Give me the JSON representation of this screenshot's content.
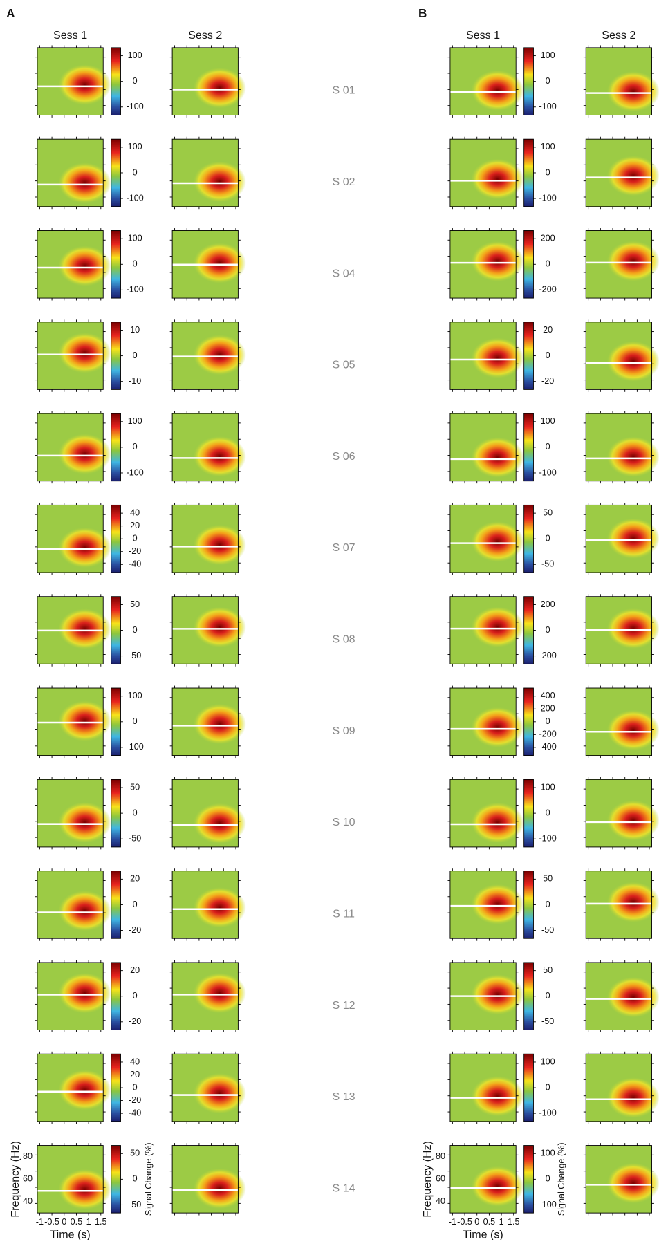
{
  "panels": [
    {
      "label": "A",
      "sessions": [
        "Sess 1",
        "Sess 2"
      ],
      "colorbar_ticks": [
        [
          100,
          0,
          -100
        ],
        [
          100,
          0,
          -100
        ],
        [
          100,
          0,
          -100
        ],
        [
          10,
          0,
          -10
        ],
        [
          100,
          0,
          -100
        ],
        [
          40,
          20,
          0,
          -20,
          -40
        ],
        [
          50,
          0,
          -50
        ],
        [
          100,
          0,
          -100
        ],
        [
          50,
          0,
          -50
        ],
        [
          20,
          0,
          -20
        ],
        [
          20,
          0,
          -20
        ],
        [
          40,
          20,
          0,
          -20,
          -40
        ],
        [
          50,
          0,
          -50
        ]
      ],
      "axes": {
        "ylabel": "Frequency (Hz)",
        "yticks": [
          80,
          60,
          40
        ],
        "xlabel": "Time (s)",
        "xticks": [
          -1,
          -0.5,
          0,
          0.5,
          1,
          1.5
        ],
        "colorbar_label": "Signal Change (%)"
      }
    },
    {
      "label": "B",
      "sessions": [
        "Sess 1",
        "Sess 2"
      ],
      "colorbar_ticks": [
        [
          100,
          0,
          -100
        ],
        [
          100,
          0,
          -100
        ],
        [
          200,
          0,
          -200
        ],
        [
          20,
          0,
          -20
        ],
        [
          100,
          0,
          -100
        ],
        [
          50,
          0,
          -50
        ],
        [
          200,
          0,
          -200
        ],
        [
          400,
          200,
          0,
          -200,
          -400
        ],
        [
          100,
          0,
          -100
        ],
        [
          50,
          0,
          -50
        ],
        [
          50,
          0,
          -50
        ],
        [
          100,
          0,
          -100
        ],
        [
          100,
          0,
          -100
        ]
      ],
      "axes": {
        "ylabel": "Frequency (Hz)",
        "yticks": [
          80,
          60,
          40
        ],
        "xlabel": "Time (s)",
        "xticks": [
          -1,
          -0.5,
          0,
          0.5,
          1,
          1.5
        ],
        "colorbar_label": "Signal Change (%)"
      }
    }
  ],
  "subjects": [
    "S 01",
    "S 02",
    "S 04",
    "S 05",
    "S 06",
    "S 07",
    "S 08",
    "S 09",
    "S 10",
    "S 11",
    "S 12",
    "S 13",
    "S 14"
  ]
}
